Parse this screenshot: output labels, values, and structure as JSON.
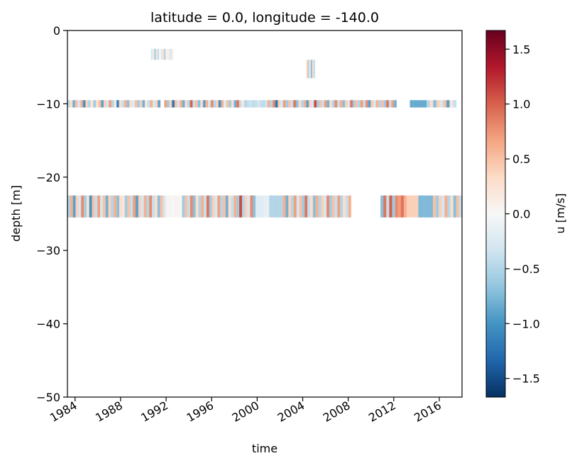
{
  "chart_data": {
    "type": "heatmap",
    "title": "latitude = 0.0, longitude = -140.0",
    "xlabel": "time",
    "ylabel": "depth [m]",
    "colorbar_label": "u [m/s]",
    "colormap": "RdBu_r",
    "vmin": -1.67,
    "vmax": 1.67,
    "xlim": [
      "1983-05-01",
      "2017-12-31"
    ],
    "ylim": [
      -50,
      0
    ],
    "x_ticks": [
      "1984-01-01",
      "1988-01-01",
      "1992-01-01",
      "1996-01-01",
      "2000-01-01",
      "2004-01-01",
      "2008-01-01",
      "2012-01-01",
      "2016-01-01"
    ],
    "x_tick_labels": [
      "1984",
      "1988",
      "1992",
      "1996",
      "2000",
      "2004",
      "2008",
      "2012",
      "2016"
    ],
    "y_ticks": [
      0,
      -10,
      -20,
      -30,
      -40,
      -50
    ],
    "y_tick_labels": [
      "0",
      "−10",
      "−20",
      "−30",
      "−40",
      "−50"
    ],
    "colorbar_ticks": [
      1.5,
      1.0,
      0.5,
      0.0,
      -0.5,
      -1.0,
      -1.5
    ],
    "colorbar_tick_labels": [
      "1.5",
      "1.0",
      "0.5",
      "0.0",
      "−0.5",
      "−1.0",
      "−1.5"
    ],
    "depth_levels": [
      {
        "depth_top": -2.5,
        "depth_bottom": -4.0,
        "segments": [
          {
            "start": "1990-09-01",
            "end": "1992-09-01",
            "values": [
              -0.3,
              0.1,
              -0.6,
              0.2,
              -0.4,
              0.0,
              -0.2,
              0.3,
              -0.5,
              0.1,
              -0.1,
              0.2,
              -0.3,
              0.0
            ]
          }
        ]
      },
      {
        "depth_top": -4.0,
        "depth_bottom": -6.5,
        "segments": [
          {
            "start": "2004-05-01",
            "end": "2005-02-01",
            "values": [
              0.4,
              -0.5,
              0.2,
              -0.7,
              0.3,
              -0.4
            ]
          }
        ]
      },
      {
        "depth_top": -9.5,
        "depth_bottom": -10.5,
        "segments": [
          {
            "start": "1983-05-01",
            "end": "1991-07-01",
            "values": [
              -0.4,
              0.3,
              -0.8,
              0.5,
              -0.3,
              0.6,
              -1.0,
              0.4,
              -0.5,
              0.2,
              -0.6,
              0.3,
              0.5,
              -0.9,
              0.4,
              -0.3,
              0.7,
              -0.5,
              0.2,
              -1.1,
              0.3,
              -0.4,
              0.6,
              -0.7,
              0.3,
              -0.2,
              0.5,
              -0.6,
              0.4,
              -0.8,
              0.2,
              -0.4,
              0.6,
              -0.3,
              0.4,
              -0.9
            ]
          },
          {
            "start": "1991-11-01",
            "end": "2012-04-01",
            "values": [
              0.7,
              -0.6,
              0.4,
              -1.2,
              0.5,
              -0.3,
              0.6,
              -0.8,
              0.3,
              -0.5,
              1.0,
              -0.4,
              0.5,
              -0.7,
              0.3,
              -0.9,
              0.6,
              -0.3,
              0.8,
              -0.5,
              0.4,
              -1.0,
              0.6,
              -0.2,
              0.5,
              -0.6,
              0.3,
              -0.8,
              0.9,
              -0.4,
              0.2,
              -0.5,
              -0.4,
              -0.35,
              -0.45,
              -0.4,
              -0.3,
              -0.4,
              -0.45,
              -0.35,
              0.6,
              -0.5,
              0.8,
              -1.2,
              0.4,
              -0.3,
              0.7,
              -0.6,
              0.5,
              -0.4,
              0.9,
              -0.7,
              0.3,
              -0.5,
              0.6,
              -0.9,
              0.4,
              -0.3,
              1.1,
              -0.6,
              0.5,
              -0.4,
              0.7,
              -0.8,
              0.3,
              -0.5,
              0.8,
              -0.4,
              0.6,
              -0.7,
              0.4,
              -0.3,
              0.9,
              -0.6,
              0.5,
              -0.5,
              0.7,
              -0.4,
              0.8,
              -0.9,
              0.4,
              -0.3,
              0.6,
              -0.5,
              0.5,
              -0.6,
              0.9,
              -0.4,
              0.7,
              -0.8
            ]
          },
          {
            "start": "2013-06-01",
            "end": "2017-07-01",
            "values": [
              -0.85,
              -0.85,
              -0.85,
              -0.85,
              -0.85,
              -0.5,
              0.3,
              -0.7,
              0.4,
              -0.3,
              0.5,
              -0.9,
              0.2,
              -0.4
            ]
          }
        ]
      },
      {
        "depth_top": -22.5,
        "depth_bottom": -25.5,
        "segments": [
          {
            "start": "1983-05-01",
            "end": "2008-04-01",
            "values": [
              -0.5,
              0.6,
              -0.9,
              0.4,
              -0.3,
              0.8,
              -0.6,
              0.3,
              -1.0,
              0.5,
              -0.4,
              0.7,
              -0.3,
              0.5,
              -0.8,
              0.4,
              -0.5,
              0.6,
              -0.7,
              0.3,
              0.2,
              -0.6,
              0.5,
              -0.4,
              0.7,
              -0.9,
              0.4,
              -0.3,
              0.6,
              -0.5,
              0.8,
              -0.4,
              0.3,
              -0.7,
              0.5,
              -0.3,
              0.05,
              0.05,
              0.0,
              0.05,
              0.05,
              0.0,
              -0.6,
              0.5,
              -0.4,
              0.8,
              -0.7,
              0.3,
              -0.5,
              0.6,
              -0.4,
              0.9,
              -0.6,
              0.4,
              -0.3,
              0.7,
              -0.5,
              0.5,
              -0.8,
              0.3,
              -0.4,
              0.6,
              -0.6,
              1.1,
              -0.5,
              0.4,
              -0.3,
              0.8,
              -0.7,
              -0.2,
              -0.2,
              -0.2,
              -0.15,
              -0.15,
              -0.5,
              -0.5,
              -0.5,
              -0.5,
              -0.5,
              0.6,
              -0.8,
              0.4,
              -0.5,
              0.7,
              -0.3,
              0.5,
              -0.6,
              0.9,
              -0.4,
              0.3,
              -0.7,
              0.6,
              -0.5,
              0.4,
              -0.3,
              0.8,
              -0.6,
              0.5,
              -0.4,
              0.7,
              -0.5,
              0.3,
              -0.4,
              0.6
            ]
          },
          {
            "start": "2010-11-01",
            "end": "2017-12-31",
            "values": [
              -0.7,
              0.9,
              -0.4,
              1.0,
              -0.6,
              0.8,
              0.7,
              0.9,
              0.6,
              0.4,
              0.4,
              0.4,
              0.4,
              -0.75,
              -0.75,
              -0.75,
              -0.75,
              -0.75,
              0.5,
              -0.6,
              0.4,
              -0.3,
              0.6,
              -0.5,
              0.3,
              -0.7,
              0.5,
              -0.4
            ]
          }
        ]
      }
    ]
  }
}
